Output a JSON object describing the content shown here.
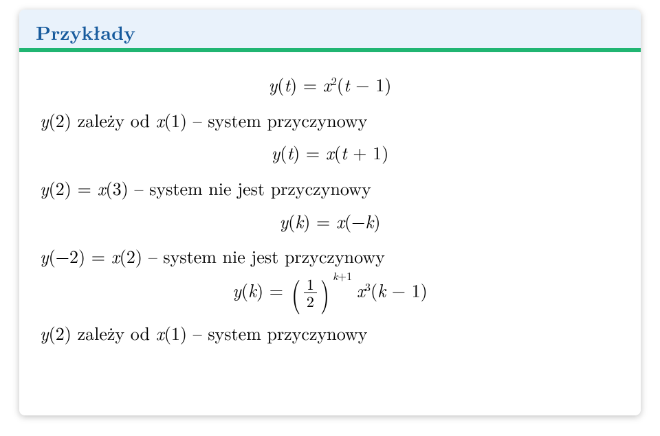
{
  "colors": {
    "titleText": "#165a9c",
    "titleBg": "#e9f2fb",
    "accent": "#20b572",
    "bodyText": "#000000"
  },
  "title": "Przykłady",
  "eq1": {
    "lhs_y": "y",
    "arg_y": "t",
    "rhs_x": "x",
    "exp": "2",
    "arg_x1": "t",
    "arg_x_op": "−",
    "arg_x2": "1"
  },
  "l1": {
    "pre_y": "y",
    "pre_arg": "2",
    "mid": " zależy od ",
    "pre_x": "x",
    "pre_xarg": "1",
    "tail": " – system przyczynowy"
  },
  "eq2": {
    "lhs_y": "y",
    "arg_y": "t",
    "rhs_x": "x",
    "arg_x1": "t",
    "arg_x_op": "+",
    "arg_x2": "1"
  },
  "l2": {
    "pre_y": "y",
    "pre_arg": "2",
    "mid_eq": " = ",
    "pre_x": "x",
    "pre_xarg": "3",
    "tail": " – system nie jest przyczynowy"
  },
  "eq3": {
    "lhs_y": "y",
    "arg_y": "k",
    "rhs_x": "x",
    "arg_x_sign": "−",
    "arg_x": "k"
  },
  "l3": {
    "pre_y": "y",
    "pre_arg_sign": "−",
    "pre_arg": "2",
    "mid_eq": " = ",
    "pre_x": "x",
    "pre_xarg": "2",
    "tail": " – system nie jest przyczynowy"
  },
  "eq4": {
    "lhs_y": "y",
    "arg_y": "k",
    "frac_num": "1",
    "frac_den": "2",
    "exp_a": "k",
    "exp_op": "+",
    "exp_b": "1",
    "rx": "x",
    "rexp": "3",
    "rarg_a": "k",
    "rarg_op": "−",
    "rarg_b": "1"
  },
  "l4": {
    "pre_y": "y",
    "pre_arg": "2",
    "mid": " zależy od ",
    "pre_x": "x",
    "pre_xarg": "1",
    "tail": " – system przyczynowy"
  }
}
